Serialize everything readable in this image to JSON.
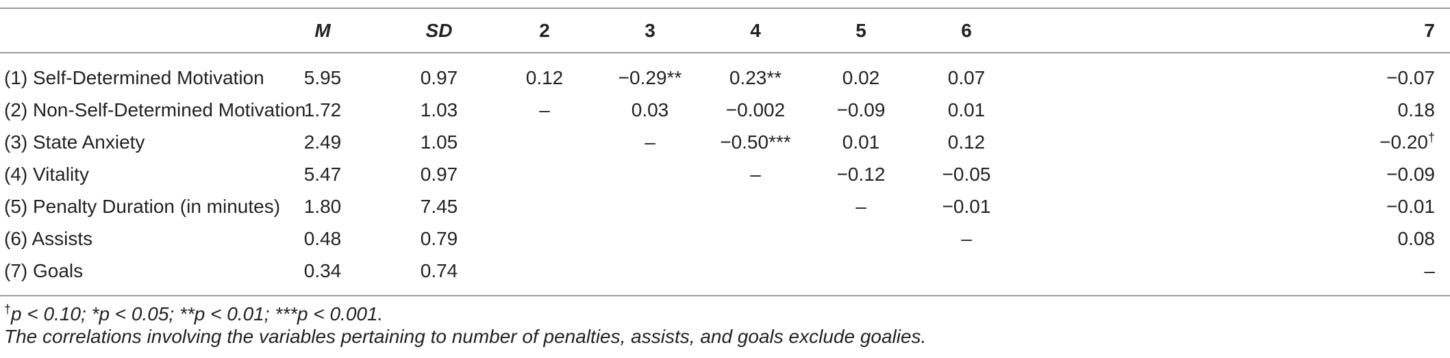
{
  "table": {
    "headers": [
      "",
      "M",
      "SD",
      "2",
      "3",
      "4",
      "5",
      "6",
      "7"
    ],
    "rows": [
      {
        "label": "(1) Self-Determined Motivation",
        "cells": [
          "5.95",
          "0.97",
          "0.12",
          "−0.29**",
          "0.23**",
          "0.02",
          "0.07",
          "−0.07"
        ]
      },
      {
        "label": "(2) Non-Self-Determined Motivation",
        "cells": [
          "1.72",
          "1.03",
          "–",
          "0.03",
          "−0.002",
          "−0.09",
          "0.01",
          "0.18"
        ]
      },
      {
        "label": "(3) State Anxiety",
        "cells": [
          "2.49",
          "1.05",
          "",
          "–",
          "−0.50***",
          "0.01",
          "0.12",
          "−0.20"
        ]
      },
      {
        "label": "(4) Vitality",
        "cells": [
          "5.47",
          "0.97",
          "",
          "",
          "–",
          "−0.12",
          "−0.05",
          "−0.09"
        ]
      },
      {
        "label": "(5) Penalty Duration (in minutes)",
        "cells": [
          "1.80",
          "7.45",
          "",
          "",
          "",
          "–",
          "−0.01",
          "−0.01"
        ]
      },
      {
        "label": "(6) Assists",
        "cells": [
          "0.48",
          "0.79",
          "",
          "",
          "",
          "",
          "–",
          "0.08"
        ]
      },
      {
        "label": "(7) Goals",
        "cells": [
          "0.34",
          "0.74",
          "",
          "",
          "",
          "",
          "",
          "–"
        ]
      }
    ],
    "dagger_symbol": "†"
  },
  "notes": {
    "dagger": "†",
    "significance": "p < 0.10; *p < 0.05; **p < 0.01; ***p < 0.001.",
    "exclusion": "The correlations involving the variables pertaining to number of penalties, assists, and goals exclude goalies."
  }
}
